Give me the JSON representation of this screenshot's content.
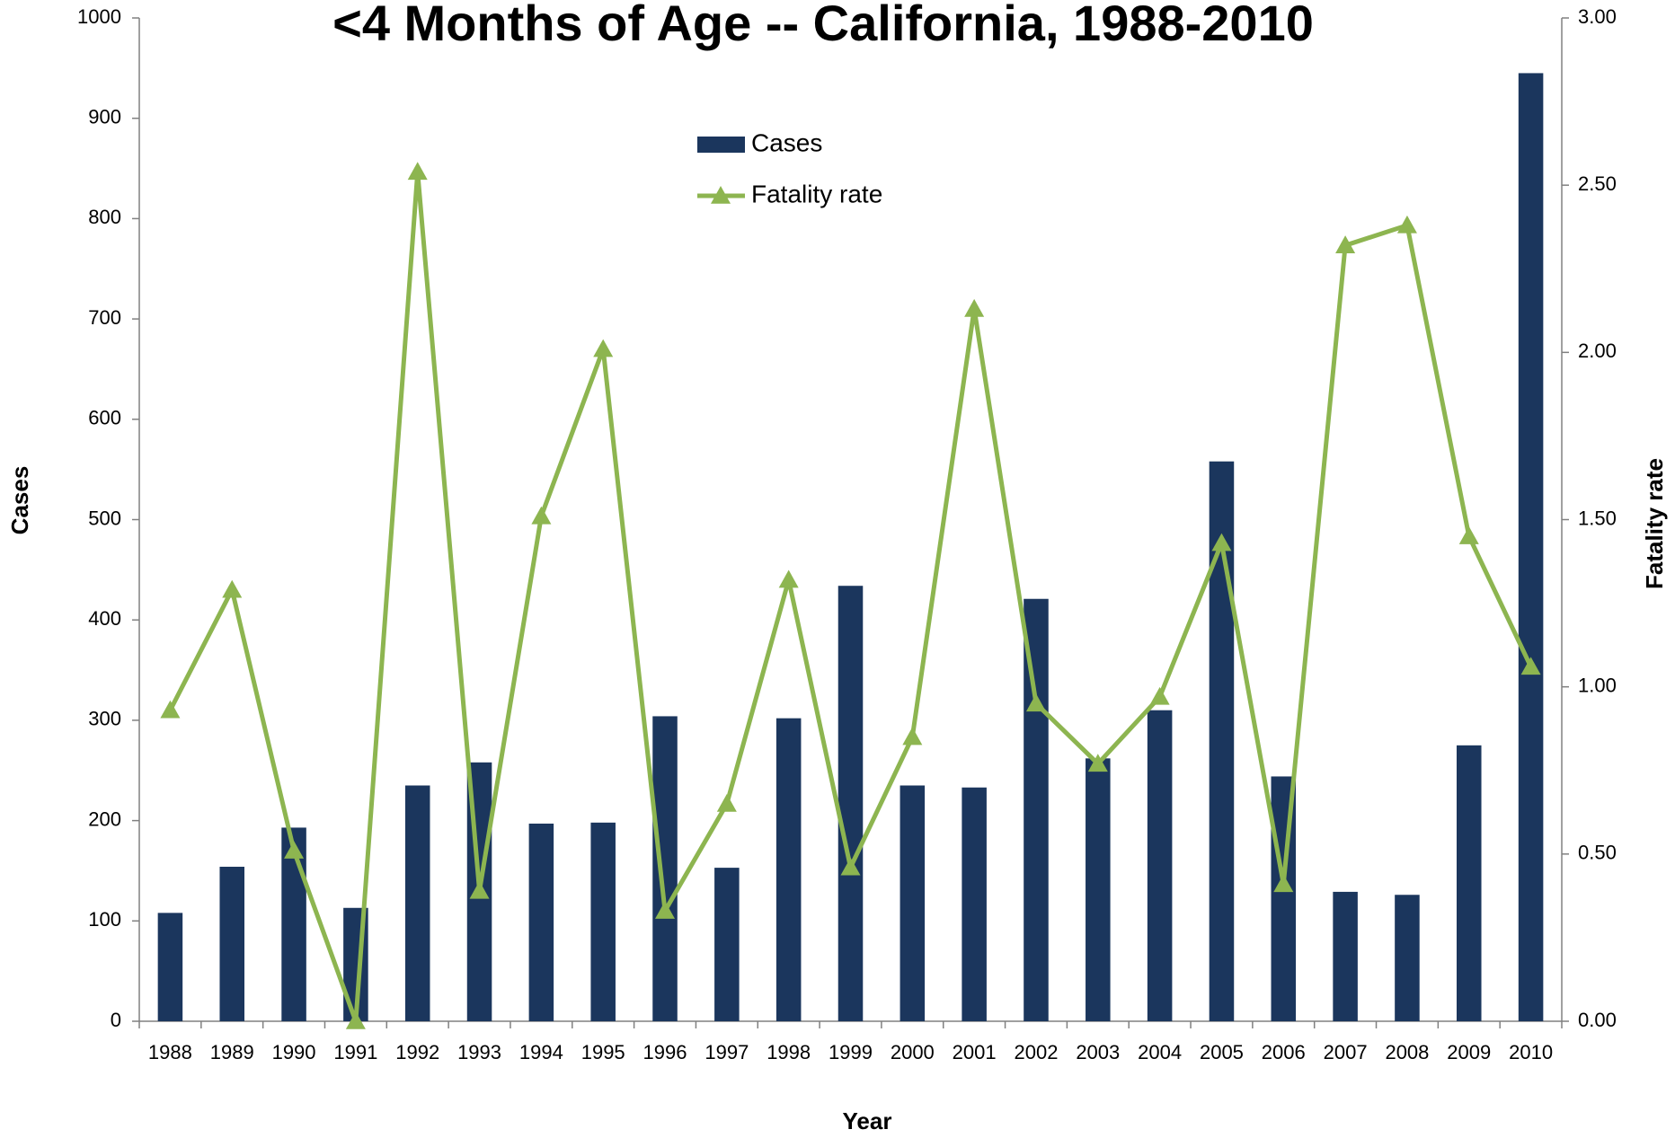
{
  "chart_data": {
    "type": "bar_line",
    "title": "<4 Months of Age -- California, 1988-2010",
    "xlabel": "Year",
    "ylabel": "Cases",
    "y2label": "Fatality rate",
    "categories": [
      "1988",
      "1989",
      "1990",
      "1991",
      "1992",
      "1993",
      "1994",
      "1995",
      "1996",
      "1997",
      "1998",
      "1999",
      "2000",
      "2001",
      "2002",
      "2003",
      "2004",
      "2005",
      "2006",
      "2007",
      "2008",
      "2009",
      "2010"
    ],
    "series": [
      {
        "name": "Cases",
        "type": "bar",
        "color": "#1b365d",
        "axis": "y",
        "values": [
          108,
          154,
          193,
          113,
          235,
          258,
          197,
          198,
          304,
          153,
          302,
          434,
          235,
          233,
          421,
          262,
          310,
          558,
          244,
          129,
          126,
          275,
          945
        ]
      },
      {
        "name": "Fatality rate",
        "type": "line",
        "color": "#8db550",
        "axis": "y2",
        "values": [
          0.93,
          1.29,
          0.51,
          0.0,
          2.54,
          0.39,
          1.51,
          2.01,
          0.33,
          0.65,
          1.32,
          0.46,
          0.85,
          2.13,
          0.95,
          0.77,
          0.97,
          1.43,
          0.41,
          2.32,
          2.38,
          1.45,
          1.06
        ]
      }
    ],
    "ylim": [
      0,
      1000
    ],
    "yticks": [
      0,
      100,
      200,
      300,
      400,
      500,
      600,
      700,
      800,
      900,
      1000
    ],
    "y2lim": [
      0,
      3
    ],
    "y2ticks": [
      {
        "value": 0,
        "label": "0.00"
      },
      {
        "value": 0.5,
        "label": "0.50"
      },
      {
        "value": 1,
        "label": "1.00"
      },
      {
        "value": 1.5,
        "label": "1.50"
      },
      {
        "value": 2,
        "label": "2.00"
      },
      {
        "value": 2.5,
        "label": "2.50"
      },
      {
        "value": 3,
        "label": "3.00"
      }
    ],
    "grid": false,
    "legend": "top"
  }
}
